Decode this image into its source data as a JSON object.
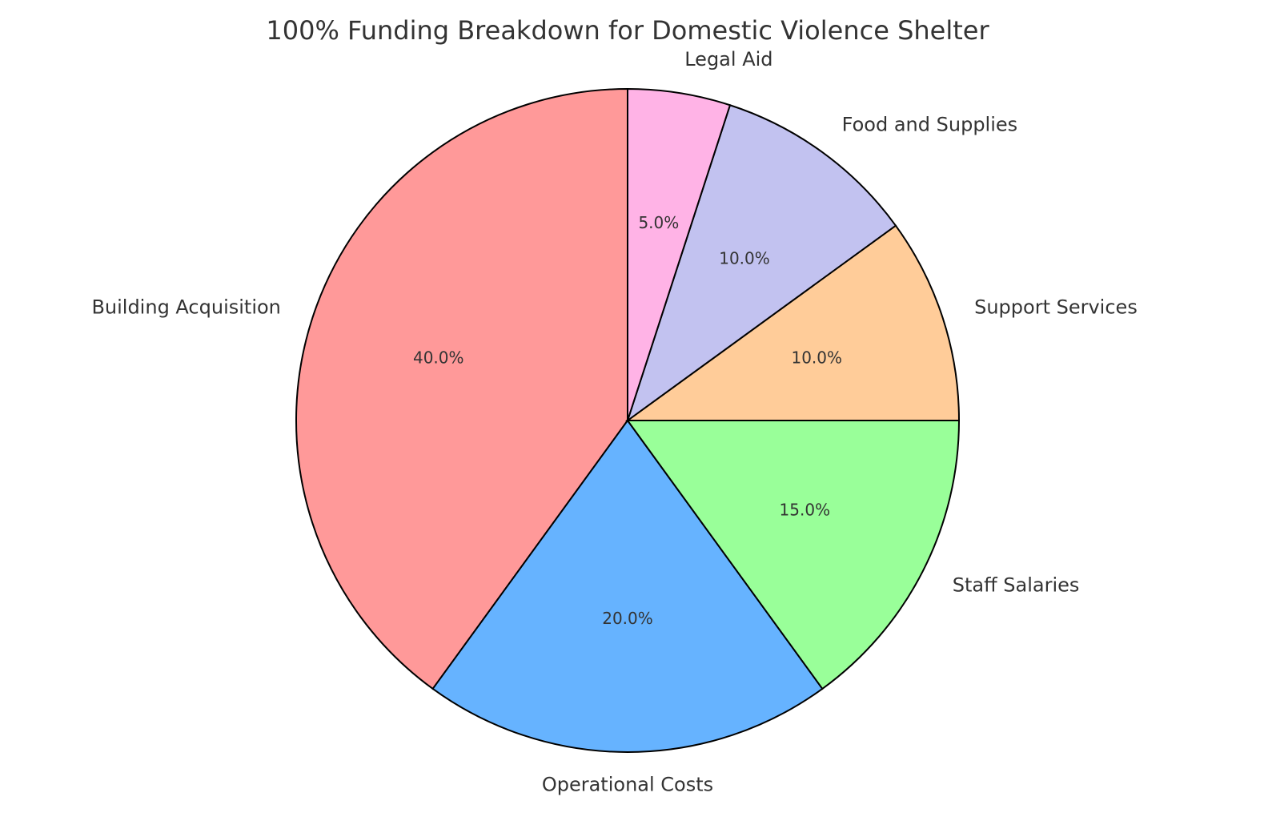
{
  "chart_data": {
    "type": "pie",
    "title": "100% Funding Breakdown for Domestic Violence Shelter",
    "categories": [
      "Building Acquisition",
      "Operational Costs",
      "Staff Salaries",
      "Support Services",
      "Food and Supplies",
      "Legal Aid"
    ],
    "values": [
      40,
      20,
      15,
      10,
      10,
      5
    ],
    "value_labels": [
      "40.0%",
      "20.0%",
      "15.0%",
      "10.0%",
      "10.0%",
      "5.0%"
    ],
    "colors": [
      "#ff9999",
      "#66b3ff",
      "#99ff99",
      "#ffcc99",
      "#c2c2f0",
      "#ffb3e6"
    ]
  }
}
